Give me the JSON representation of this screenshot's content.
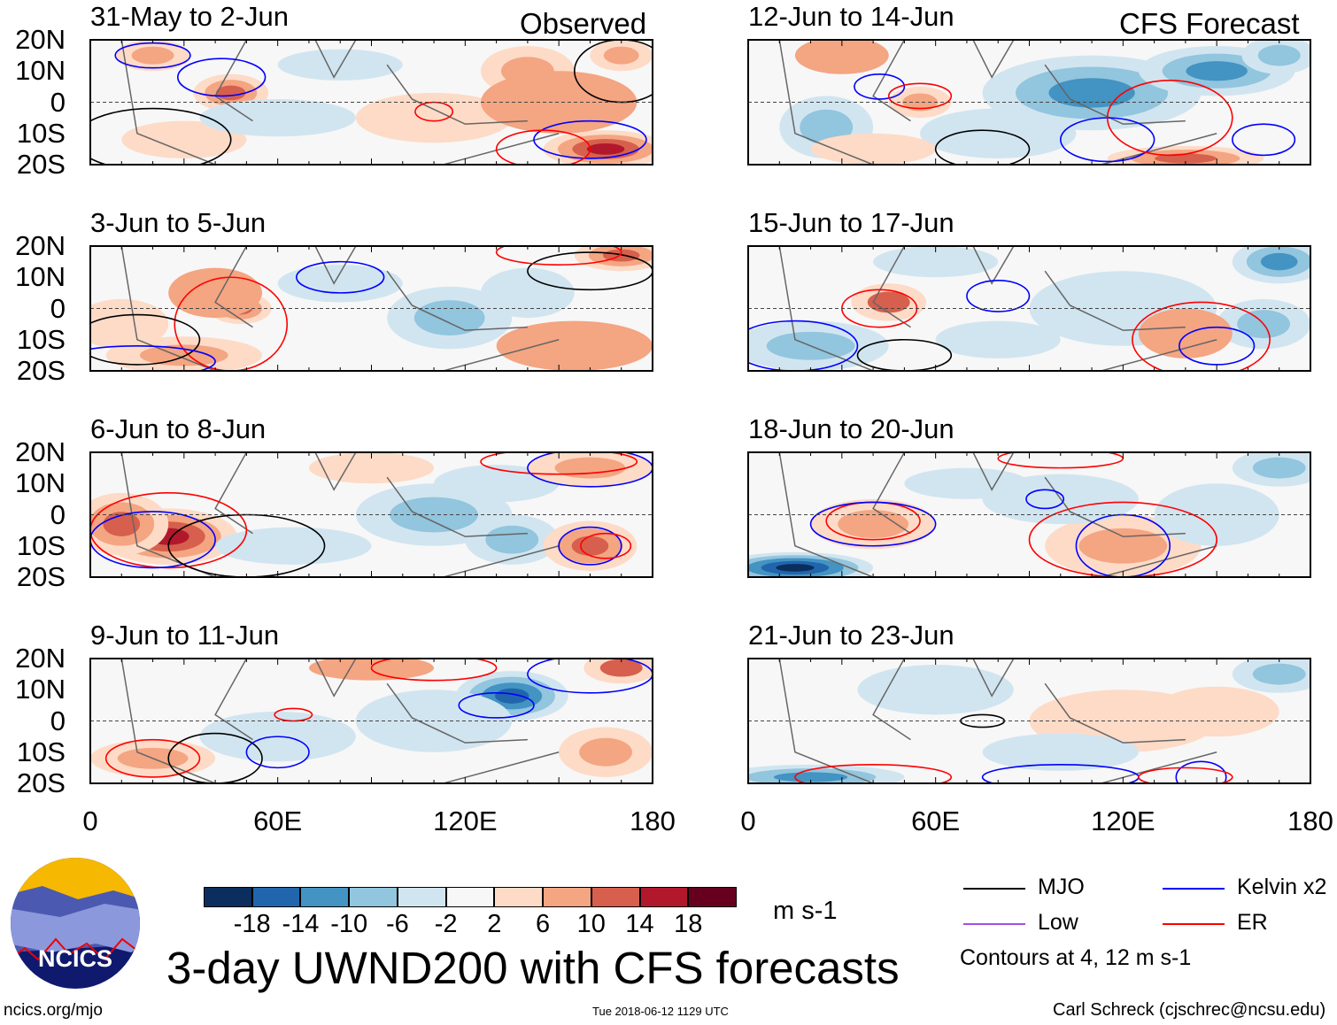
{
  "title": "3-day UWND200 with CFS forecasts",
  "units": "m s-1",
  "site": "ncics.org/mjo",
  "timestamp": "Tue 2018-06-12 1129 UTC",
  "credit": "Carl Schreck (cjschrec@ncsu.edu)",
  "logo_text": "NCICS",
  "column_labels": {
    "left": "Observed",
    "right": "CFS Forecast"
  },
  "lat_labels": [
    "20N",
    "10N",
    "0",
    "10S",
    "20S"
  ],
  "lon_labels": [
    "0",
    "60E",
    "120E",
    "180"
  ],
  "legend": {
    "items": [
      {
        "label": "MJO",
        "color": "#000000"
      },
      {
        "label": "Kelvin x2",
        "color": "#0000ff"
      },
      {
        "label": "Low",
        "color": "#a050e0"
      },
      {
        "label": "ER",
        "color": "#ff0000"
      }
    ],
    "note": "Contours at 4, 12 m s-1"
  },
  "colorbar": {
    "labels": [
      "-18",
      "-14",
      "-10",
      "-6",
      "-2",
      "2",
      "6",
      "10",
      "14",
      "18"
    ],
    "colors": [
      "#0b2e5e",
      "#2166ac",
      "#4393c3",
      "#92c5de",
      "#d1e5f0",
      "#f7f7f7",
      "#fddbc7",
      "#f4a582",
      "#d6604d",
      "#b2182b",
      "#67001f"
    ]
  },
  "chart_data": {
    "type": "heatmap",
    "xlim": [
      0,
      180
    ],
    "ylim": [
      -20,
      20
    ],
    "panels": [
      {
        "title": "31-May to 2-Jun",
        "col": 0,
        "row": 0,
        "anoms": [
          [
            45,
            3,
            12,
            6,
            11
          ],
          [
            20,
            15,
            12,
            5,
            7
          ],
          [
            165,
            -15,
            20,
            6,
            16
          ],
          [
            140,
            10,
            15,
            8,
            8
          ],
          [
            110,
            -5,
            25,
            8,
            5
          ],
          [
            30,
            -12,
            20,
            6,
            4
          ],
          [
            80,
            12,
            20,
            5,
            -4
          ],
          [
            60,
            -5,
            25,
            6,
            -4
          ],
          [
            150,
            0,
            25,
            10,
            6
          ],
          [
            170,
            15,
            10,
            5,
            8
          ]
        ],
        "contours": [
          [
            42,
            8,
            14,
            6,
            "K"
          ],
          [
            110,
            -3,
            6,
            3,
            "E"
          ],
          [
            160,
            -12,
            18,
            6,
            "K"
          ],
          [
            145,
            -15,
            15,
            6,
            "E"
          ],
          [
            20,
            15,
            12,
            4,
            "K"
          ],
          [
            170,
            10,
            15,
            10,
            "M"
          ],
          [
            20,
            -12,
            25,
            10,
            "M"
          ]
        ]
      },
      {
        "title": "12-Jun to 14-Jun",
        "col": 1,
        "row": 0,
        "anoms": [
          [
            110,
            3,
            35,
            12,
            -12
          ],
          [
            150,
            10,
            25,
            8,
            -11
          ],
          [
            25,
            -8,
            15,
            10,
            -10
          ],
          [
            170,
            15,
            12,
            6,
            -9
          ],
          [
            55,
            0,
            10,
            5,
            8
          ],
          [
            30,
            15,
            15,
            6,
            6
          ],
          [
            140,
            -18,
            25,
            4,
            12
          ],
          [
            80,
            -10,
            25,
            8,
            -5
          ],
          [
            40,
            -15,
            20,
            5,
            4
          ]
        ],
        "contours": [
          [
            42,
            5,
            8,
            4,
            "K"
          ],
          [
            55,
            2,
            10,
            4,
            "E"
          ],
          [
            115,
            -12,
            15,
            7,
            "K"
          ],
          [
            135,
            -5,
            20,
            12,
            "E"
          ],
          [
            165,
            -12,
            10,
            5,
            "K"
          ],
          [
            75,
            -15,
            15,
            6,
            "M"
          ]
        ]
      },
      {
        "title": "3-Jun to 5-Jun",
        "col": 0,
        "row": 1,
        "anoms": [
          [
            48,
            0,
            10,
            5,
            13
          ],
          [
            30,
            -15,
            25,
            6,
            8
          ],
          [
            40,
            5,
            15,
            8,
            6
          ],
          [
            115,
            -3,
            20,
            10,
            -8
          ],
          [
            170,
            17,
            15,
            5,
            12
          ],
          [
            155,
            -12,
            25,
            8,
            6
          ],
          [
            80,
            8,
            20,
            6,
            -4
          ],
          [
            140,
            5,
            15,
            8,
            -4
          ],
          [
            10,
            -5,
            15,
            8,
            4
          ]
        ],
        "contours": [
          [
            45,
            -5,
            18,
            15,
            "E"
          ],
          [
            80,
            10,
            14,
            5,
            "K"
          ],
          [
            15,
            -10,
            20,
            8,
            "M"
          ],
          [
            160,
            12,
            20,
            6,
            "M"
          ],
          [
            150,
            18,
            20,
            4,
            "E"
          ],
          [
            15,
            -17,
            25,
            5,
            "K"
          ]
        ]
      },
      {
        "title": "15-Jun to 17-Jun",
        "col": 1,
        "row": 1,
        "anoms": [
          [
            45,
            2,
            12,
            6,
            10
          ],
          [
            120,
            0,
            30,
            12,
            -6
          ],
          [
            170,
            15,
            15,
            7,
            -12
          ],
          [
            165,
            -5,
            15,
            8,
            -9
          ],
          [
            140,
            -8,
            15,
            8,
            6
          ],
          [
            20,
            -12,
            25,
            8,
            -8
          ],
          [
            80,
            -10,
            20,
            6,
            -5
          ],
          [
            60,
            15,
            20,
            5,
            -3
          ]
        ],
        "contours": [
          [
            42,
            0,
            12,
            6,
            "E"
          ],
          [
            80,
            4,
            10,
            5,
            "K"
          ],
          [
            145,
            -10,
            22,
            12,
            "E"
          ],
          [
            150,
            -12,
            12,
            6,
            "K"
          ],
          [
            15,
            -12,
            20,
            8,
            "K"
          ],
          [
            50,
            -15,
            15,
            5,
            "M"
          ]
        ]
      },
      {
        "title": "6-Jun to 8-Jun",
        "col": 0,
        "row": 2,
        "anoms": [
          [
            25,
            -7,
            22,
            9,
            16
          ],
          [
            10,
            -3,
            15,
            10,
            12
          ],
          [
            110,
            0,
            25,
            10,
            -8
          ],
          [
            135,
            -8,
            15,
            8,
            -9
          ],
          [
            160,
            -10,
            15,
            8,
            12
          ],
          [
            130,
            10,
            20,
            6,
            -5
          ],
          [
            160,
            15,
            20,
            6,
            8
          ],
          [
            90,
            15,
            20,
            5,
            4
          ],
          [
            65,
            -10,
            25,
            6,
            -4
          ]
        ],
        "contours": [
          [
            25,
            -5,
            25,
            12,
            "E"
          ],
          [
            20,
            -8,
            20,
            9,
            "K"
          ],
          [
            160,
            -10,
            10,
            6,
            "K"
          ],
          [
            165,
            -10,
            8,
            4,
            "E"
          ],
          [
            150,
            17,
            25,
            4,
            "E"
          ],
          [
            160,
            15,
            20,
            6,
            "K"
          ],
          [
            50,
            -10,
            25,
            10,
            "M"
          ]
        ]
      },
      {
        "title": "18-Jun to 20-Jun",
        "col": 1,
        "row": 2,
        "anoms": [
          [
            15,
            -17,
            25,
            5,
            -20
          ],
          [
            40,
            -3,
            20,
            8,
            7
          ],
          [
            120,
            -10,
            25,
            10,
            7
          ],
          [
            170,
            15,
            15,
            6,
            -9
          ],
          [
            100,
            5,
            25,
            8,
            -4
          ],
          [
            150,
            0,
            20,
            10,
            -5
          ],
          [
            70,
            10,
            20,
            5,
            -3
          ]
        ],
        "contours": [
          [
            40,
            -2,
            15,
            6,
            "E"
          ],
          [
            40,
            -3,
            20,
            7,
            "K"
          ],
          [
            120,
            -10,
            15,
            10,
            "K"
          ],
          [
            120,
            -8,
            30,
            12,
            "E"
          ],
          [
            100,
            18,
            20,
            3,
            "E"
          ],
          [
            95,
            5,
            6,
            3,
            "K"
          ]
        ]
      },
      {
        "title": "9-Jun to 11-Jun",
        "col": 0,
        "row": 3,
        "anoms": [
          [
            135,
            8,
            18,
            8,
            -16
          ],
          [
            110,
            0,
            25,
            10,
            -6
          ],
          [
            20,
            -12,
            20,
            6,
            8
          ],
          [
            170,
            17,
            12,
            5,
            10
          ],
          [
            165,
            -10,
            15,
            8,
            7
          ],
          [
            90,
            17,
            20,
            4,
            6
          ],
          [
            60,
            -5,
            25,
            8,
            -4
          ]
        ],
        "contours": [
          [
            130,
            5,
            12,
            4,
            "K"
          ],
          [
            110,
            17,
            20,
            4,
            "E"
          ],
          [
            160,
            15,
            20,
            6,
            "K"
          ],
          [
            20,
            -12,
            15,
            6,
            "E"
          ],
          [
            40,
            -12,
            15,
            8,
            "M"
          ],
          [
            60,
            -10,
            10,
            5,
            "K"
          ],
          [
            65,
            2,
            6,
            2,
            "E"
          ]
        ]
      },
      {
        "title": "21-Jun to 23-Jun",
        "col": 1,
        "row": 3,
        "anoms": [
          [
            20,
            -18,
            30,
            4,
            -14
          ],
          [
            120,
            0,
            30,
            10,
            4
          ],
          [
            150,
            3,
            20,
            8,
            5
          ],
          [
            170,
            15,
            15,
            6,
            -7
          ],
          [
            60,
            10,
            25,
            8,
            -3
          ],
          [
            100,
            -10,
            25,
            6,
            -3
          ]
        ],
        "contours": [
          [
            75,
            0,
            7,
            2,
            "M"
          ],
          [
            40,
            -18,
            25,
            4,
            "E"
          ],
          [
            100,
            -18,
            25,
            4,
            "K"
          ],
          [
            145,
            -18,
            8,
            5,
            "K"
          ],
          [
            140,
            -18,
            15,
            3,
            "E"
          ]
        ]
      }
    ]
  }
}
